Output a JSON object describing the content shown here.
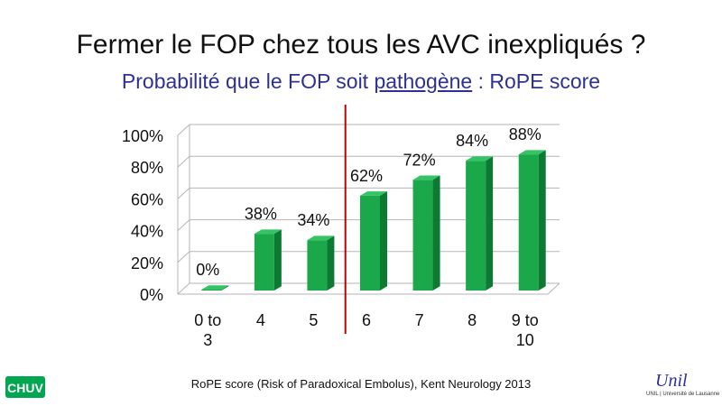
{
  "slide": {
    "title": "Fermer le FOP chez tous les AVC inexpliqués ?",
    "subtitle_before": "Probabilité que le FOP soit ",
    "subtitle_underlined": "pathogène",
    "subtitle_after": " : RoPE score",
    "footer": "RoPE score (Risk of Paradoxical Embolus), Kent Neurology  2013",
    "logo_left": "CHUV",
    "logo_right": "Unil",
    "logo_right_sub": "UNIL | Université de Lausanne"
  },
  "colors": {
    "bar_front": "#1aa84a",
    "bar_side": "#0d7a33",
    "bar_top": "#34c463",
    "divider": "#c00000",
    "subtitle": "#2e3192",
    "chuv_green": "#00a650",
    "unil_blue": "#2e3192"
  },
  "chart_data": {
    "type": "bar",
    "categories": [
      "0 to 3",
      "4",
      "5",
      "6",
      "7",
      "8",
      "9 to 10"
    ],
    "values": [
      0,
      38,
      34,
      62,
      72,
      84,
      88
    ],
    "value_labels": [
      "0%",
      "38%",
      "34%",
      "62%",
      "72%",
      "84%",
      "88%"
    ],
    "y_ticks": [
      "0%",
      "20%",
      "40%",
      "60%",
      "80%",
      "100%"
    ],
    "ylim": [
      0,
      100
    ],
    "grid": true,
    "style": "3d",
    "divider_after_category": "5"
  }
}
